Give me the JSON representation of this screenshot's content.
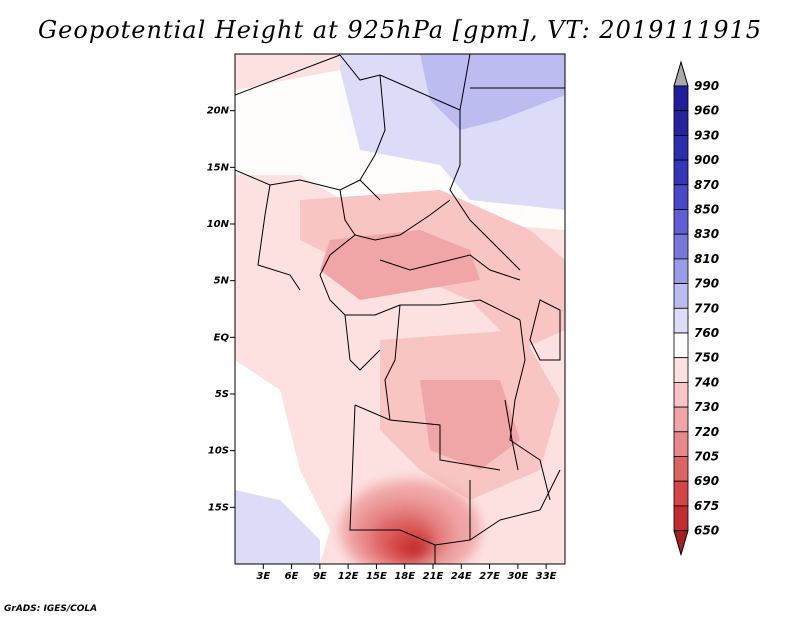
{
  "title": "Geopotential Height at 925hPa [gpm], VT: 2019111915",
  "footer": "GrADS: IGES/COLA",
  "map": {
    "lon_range": [
      0,
      35
    ],
    "lat_range": [
      -20,
      25
    ],
    "lat_ticks": [
      {
        "value": 20,
        "label": "20N"
      },
      {
        "value": 15,
        "label": "15N"
      },
      {
        "value": 10,
        "label": "10N"
      },
      {
        "value": 5,
        "label": "5N"
      },
      {
        "value": 0,
        "label": "EQ"
      },
      {
        "value": -5,
        "label": "5S"
      },
      {
        "value": -10,
        "label": "10S"
      },
      {
        "value": -15,
        "label": "15S"
      }
    ],
    "lon_ticks": [
      {
        "value": 3,
        "label": "3E"
      },
      {
        "value": 6,
        "label": "6E"
      },
      {
        "value": 9,
        "label": "9E"
      },
      {
        "value": 12,
        "label": "12E"
      },
      {
        "value": 15,
        "label": "15E"
      },
      {
        "value": 18,
        "label": "18E"
      },
      {
        "value": 21,
        "label": "21E"
      },
      {
        "value": 24,
        "label": "24E"
      },
      {
        "value": 27,
        "label": "27E"
      },
      {
        "value": 30,
        "label": "30E"
      },
      {
        "value": 33,
        "label": "33E"
      }
    ]
  },
  "colorbar": {
    "labels": [
      "990",
      "960",
      "930",
      "900",
      "870",
      "850",
      "830",
      "810",
      "790",
      "770",
      "760",
      "750",
      "740",
      "730",
      "720",
      "705",
      "690",
      "675",
      "650"
    ],
    "colors": [
      "#1f1f9e",
      "#25239f",
      "#2c2daf",
      "#3535bb",
      "#4a4ac8",
      "#5f5fd3",
      "#7878dc",
      "#9b9be6",
      "#bcbcf0",
      "#dcdcf8",
      "#ffffff",
      "#fde1e1",
      "#f8c4c4",
      "#f0a6a6",
      "#e88888",
      "#dd6464",
      "#d44545",
      "#c42d2d",
      "#a81e1e"
    ],
    "over_color": "#aaaaaa"
  }
}
